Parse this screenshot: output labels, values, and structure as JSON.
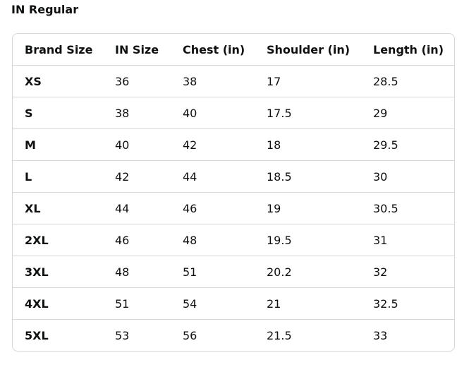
{
  "title": "IN Regular",
  "table": {
    "headers": [
      "Brand Size",
      "IN Size",
      "Chest (in)",
      "Shoulder (in)",
      "Length (in)"
    ],
    "rows": [
      [
        "XS",
        "36",
        "38",
        "17",
        "28.5"
      ],
      [
        "S",
        "38",
        "40",
        "17.5",
        "29"
      ],
      [
        "M",
        "40",
        "42",
        "18",
        "29.5"
      ],
      [
        "L",
        "42",
        "44",
        "18.5",
        "30"
      ],
      [
        "XL",
        "44",
        "46",
        "19",
        "30.5"
      ],
      [
        "2XL",
        "46",
        "48",
        "19.5",
        "31"
      ],
      [
        "3XL",
        "48",
        "51",
        "20.2",
        "32"
      ],
      [
        "4XL",
        "51",
        "54",
        "21",
        "32.5"
      ],
      [
        "5XL",
        "53",
        "56",
        "21.5",
        "33"
      ]
    ]
  }
}
